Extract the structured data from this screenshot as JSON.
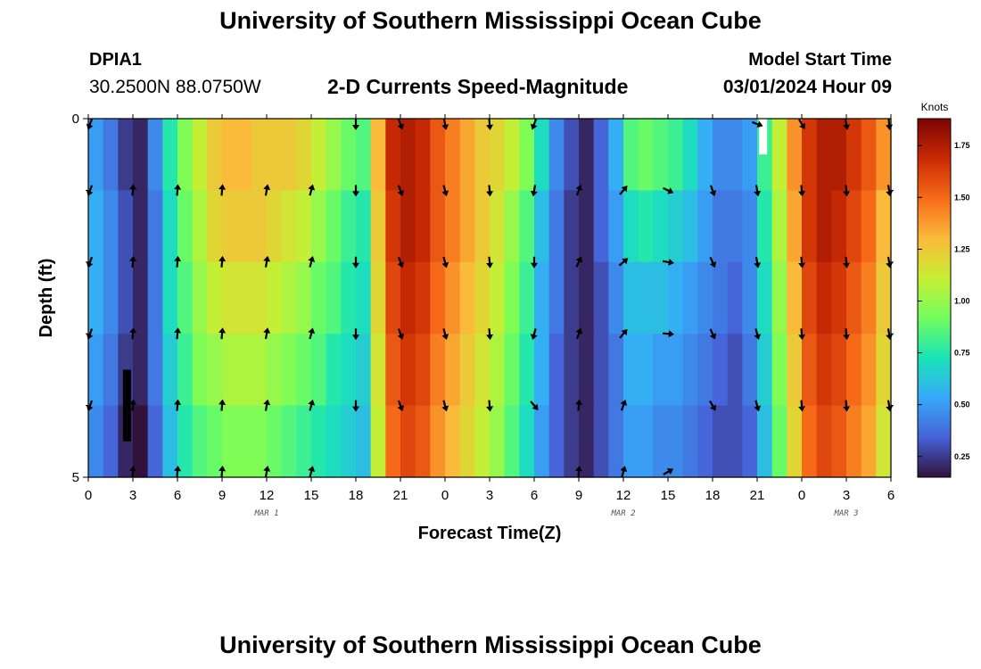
{
  "header": {
    "title": "University of Southern Mississippi Ocean Cube",
    "station": "DPIA1",
    "coordinates": "30.2500N  88.0750W",
    "subtitle": "2-D Currents Speed-Magnitude",
    "start_label": "Model Start Time",
    "start_time": "03/01/2024 Hour 09"
  },
  "footer": {
    "title": "University of Southern Mississippi Ocean Cube"
  },
  "chart_data": {
    "type": "heatmap",
    "title": "2-D Currents Speed-Magnitude",
    "xlabel": "Forecast Time(Z)",
    "ylabel": "Depth (ft)",
    "x_tick_labels": [
      "0",
      "3",
      "6",
      "9",
      "12",
      "15",
      "18",
      "21",
      "0",
      "3",
      "6",
      "9",
      "12",
      "15",
      "18",
      "21",
      "0",
      "3",
      "6"
    ],
    "x_range_hours": [
      0,
      54
    ],
    "day_labels": [
      {
        "text": "MAR 1",
        "hour": 12
      },
      {
        "text": "MAR 2",
        "hour": 36
      },
      {
        "text": "MAR 3",
        "hour": 51
      }
    ],
    "y_tick_labels": [
      "0",
      "5"
    ],
    "y_range_ft": [
      0,
      5
    ],
    "depth_rows": 5,
    "colorbar": {
      "unit": "Knots",
      "min": 0.15,
      "max": 1.88,
      "ticks": [
        "1.75",
        "1.50",
        "1.25",
        "1.00",
        "0.75",
        "0.50",
        "0.25"
      ],
      "tick_values": [
        1.75,
        1.5,
        1.25,
        1.0,
        0.75,
        0.5,
        0.25
      ],
      "stops": [
        "#30123b",
        "#4662d7",
        "#36aaf9",
        "#1ae4b6",
        "#72fe5e",
        "#c8ef34",
        "#faba39",
        "#f66b19",
        "#ca2a04",
        "#7a0403"
      ]
    },
    "time_hours": [
      0,
      1,
      2,
      3,
      4,
      5,
      6,
      7,
      8,
      9,
      10,
      11,
      12,
      13,
      14,
      15,
      16,
      17,
      18,
      19,
      20,
      21,
      22,
      23,
      24,
      25,
      26,
      27,
      28,
      29,
      30,
      31,
      32,
      33,
      34,
      35,
      36,
      37,
      38,
      39,
      40,
      41,
      42,
      43,
      44,
      45,
      46,
      47,
      48,
      49,
      50,
      51,
      52,
      53
    ],
    "speed_knots": [
      [
        0.5,
        0.4,
        0.25,
        0.2,
        0.45,
        0.75,
        0.95,
        1.1,
        1.25,
        1.3,
        1.3,
        1.25,
        1.25,
        1.25,
        1.2,
        1.1,
        1.0,
        0.9,
        0.85,
        1.3,
        1.7,
        1.75,
        1.7,
        1.55,
        1.45,
        1.35,
        1.25,
        1.2,
        1.1,
        0.95,
        0.7,
        0.45,
        0.3,
        0.2,
        0.35,
        0.55,
        0.85,
        0.9,
        0.85,
        0.8,
        0.7,
        0.55,
        0.45,
        0.45,
        0.5,
        0.8,
        1.1,
        1.4,
        1.65,
        1.75,
        1.75,
        1.65,
        1.55,
        1.4
      ],
      [
        0.55,
        0.45,
        0.3,
        0.2,
        0.4,
        0.7,
        0.9,
        1.05,
        1.2,
        1.25,
        1.25,
        1.25,
        1.2,
        1.15,
        1.1,
        1.0,
        0.9,
        0.8,
        0.75,
        1.25,
        1.65,
        1.75,
        1.7,
        1.55,
        1.45,
        1.35,
        1.25,
        1.15,
        1.0,
        0.85,
        0.6,
        0.4,
        0.25,
        0.2,
        0.35,
        0.5,
        0.7,
        0.75,
        0.7,
        0.65,
        0.6,
        0.5,
        0.4,
        0.4,
        0.45,
        0.75,
        1.05,
        1.35,
        1.65,
        1.75,
        1.7,
        1.6,
        1.5,
        1.3
      ],
      [
        0.55,
        0.45,
        0.3,
        0.2,
        0.4,
        0.7,
        0.85,
        1.0,
        1.1,
        1.15,
        1.15,
        1.15,
        1.1,
        1.05,
        1.0,
        0.9,
        0.85,
        0.75,
        0.7,
        1.2,
        1.6,
        1.7,
        1.65,
        1.5,
        1.4,
        1.3,
        1.2,
        1.1,
        0.95,
        0.8,
        0.55,
        0.4,
        0.25,
        0.2,
        0.3,
        0.45,
        0.6,
        0.6,
        0.6,
        0.55,
        0.5,
        0.45,
        0.4,
        0.35,
        0.45,
        0.7,
        1.0,
        1.3,
        1.6,
        1.7,
        1.65,
        1.55,
        1.45,
        1.25
      ],
      [
        0.5,
        0.4,
        0.25,
        0.2,
        0.4,
        0.65,
        0.8,
        0.95,
        1.0,
        1.05,
        1.05,
        1.05,
        1.0,
        0.95,
        0.9,
        0.85,
        0.75,
        0.7,
        0.65,
        1.15,
        1.55,
        1.65,
        1.6,
        1.45,
        1.35,
        1.25,
        1.15,
        1.05,
        0.9,
        0.75,
        0.55,
        0.35,
        0.25,
        0.2,
        0.3,
        0.4,
        0.55,
        0.55,
        0.5,
        0.5,
        0.45,
        0.4,
        0.35,
        0.3,
        0.4,
        0.65,
        0.95,
        1.25,
        1.55,
        1.65,
        1.6,
        1.5,
        1.4,
        1.2
      ],
      [
        0.45,
        0.35,
        0.2,
        0.15,
        0.35,
        0.6,
        0.75,
        0.85,
        0.9,
        0.95,
        0.95,
        0.95,
        0.9,
        0.85,
        0.8,
        0.75,
        0.7,
        0.65,
        0.6,
        1.1,
        1.5,
        1.6,
        1.55,
        1.4,
        1.3,
        1.2,
        1.1,
        1.0,
        0.85,
        0.7,
        0.5,
        0.35,
        0.25,
        0.2,
        0.3,
        0.4,
        0.5,
        0.5,
        0.45,
        0.45,
        0.4,
        0.35,
        0.3,
        0.3,
        0.35,
        0.6,
        0.9,
        1.2,
        1.5,
        1.6,
        1.55,
        1.45,
        1.35,
        1.15
      ]
    ],
    "arrow_times": [
      0,
      3,
      6,
      9,
      12,
      15,
      18,
      21,
      24,
      27,
      30,
      33,
      36,
      39,
      42,
      45,
      48,
      51,
      54
    ],
    "arrow_directions_deg": [
      [
        200,
        null,
        null,
        null,
        null,
        null,
        180,
        160,
        170,
        175,
        200,
        null,
        null,
        null,
        null,
        110,
        150,
        170,
        175
      ],
      [
        200,
        5,
        5,
        5,
        10,
        15,
        180,
        160,
        165,
        175,
        190,
        20,
        40,
        115,
        160,
        170,
        175,
        175,
        170
      ],
      [
        200,
        5,
        5,
        5,
        10,
        15,
        180,
        160,
        165,
        175,
        180,
        25,
        50,
        100,
        155,
        170,
        175,
        175,
        170
      ],
      [
        200,
        5,
        5,
        5,
        10,
        15,
        180,
        160,
        165,
        175,
        195,
        20,
        40,
        95,
        155,
        165,
        175,
        175,
        170
      ],
      [
        200,
        5,
        5,
        5,
        10,
        15,
        180,
        160,
        165,
        175,
        140,
        5,
        20,
        null,
        150,
        165,
        175,
        175,
        170
      ],
      [
        null,
        5,
        5,
        5,
        10,
        15,
        null,
        null,
        null,
        null,
        null,
        5,
        15,
        60,
        null,
        null,
        null,
        null,
        null
      ]
    ],
    "missing_markers": [
      {
        "hour": 2.6,
        "depth_from": 3.5,
        "depth_to": 4.5,
        "color": "black"
      },
      {
        "hour": 45.4,
        "depth_from": 0.0,
        "depth_to": 0.5,
        "color": "white"
      }
    ]
  }
}
